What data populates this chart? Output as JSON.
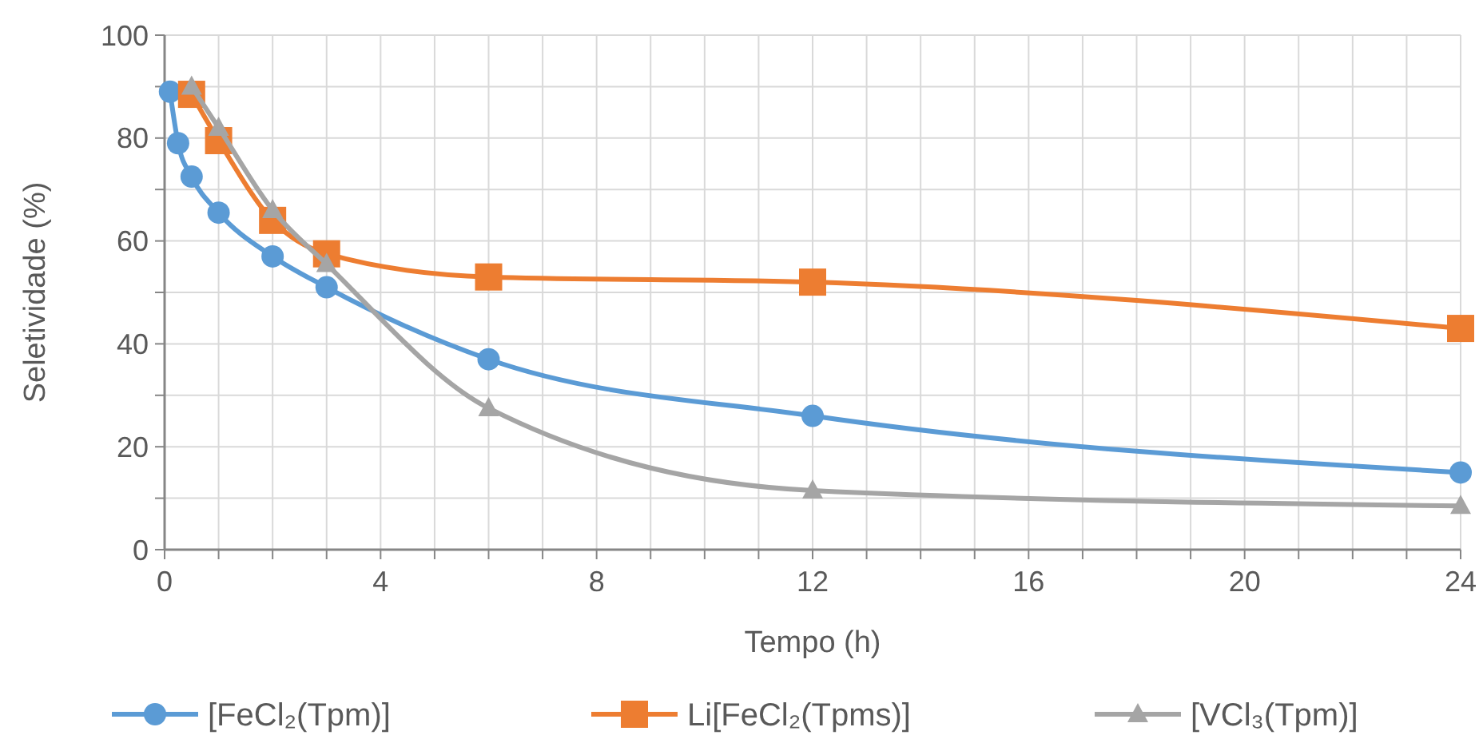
{
  "chart_data": {
    "type": "line",
    "xlabel": "Tempo (h)",
    "ylabel": "Seletividade (%)",
    "xlim": [
      0,
      24
    ],
    "xticks": [
      0,
      {
        "value": 1,
        "label": null
      },
      {
        "value": 2,
        "label": null
      },
      {
        "value": 3,
        "label": null
      },
      4,
      {
        "value": 5,
        "label": null
      },
      {
        "value": 6,
        "label": null
      },
      {
        "value": 7,
        "label": null
      },
      8,
      {
        "value": 9,
        "label": null
      },
      {
        "value": 10,
        "label": null
      },
      {
        "value": 11,
        "label": null
      },
      12,
      {
        "value": 13,
        "label": null
      },
      {
        "value": 14,
        "label": null
      },
      {
        "value": 15,
        "label": null
      },
      16,
      {
        "value": 17,
        "label": null
      },
      {
        "value": 18,
        "label": null
      },
      {
        "value": 19,
        "label": null
      },
      20,
      {
        "value": 21,
        "label": null
      },
      {
        "value": 22,
        "label": null
      },
      {
        "value": 23,
        "label": null
      },
      24
    ],
    "ylim": [
      0,
      100
    ],
    "yticks": [
      0,
      {
        "value": 10,
        "label": null
      },
      20,
      {
        "value": 30,
        "label": null
      },
      40,
      {
        "value": 50,
        "label": null
      },
      60,
      {
        "value": 70,
        "label": null
      },
      80,
      {
        "value": 90,
        "label": null
      },
      100
    ],
    "grid": true,
    "legend": "bottom",
    "line_style": "solid",
    "series": [
      {
        "name": "[FeCl₂(Tpm)]",
        "color": "#5b9bd5",
        "marker": "circle",
        "x": [
          0.1,
          0.25,
          0.5,
          1,
          2,
          3,
          6,
          12,
          24
        ],
        "values": [
          89,
          79,
          72.5,
          65.5,
          57,
          51,
          37,
          26,
          15
        ]
      },
      {
        "name": "Li[FeCl₂(Tpms)]",
        "color": "#ed7d31",
        "marker": "square",
        "x": [
          0.5,
          1,
          2,
          3,
          6,
          12,
          24
        ],
        "values": [
          88.5,
          79.5,
          64,
          57.5,
          53,
          52,
          43
        ]
      },
      {
        "name": "[VCl₃(Tpm)]",
        "color": "#a5a5a5",
        "marker": "triangle",
        "x": [
          0.5,
          1,
          2,
          3,
          6,
          12,
          24
        ],
        "values": [
          90,
          82,
          66,
          55.5,
          27.5,
          11.5,
          8.5
        ]
      }
    ]
  }
}
